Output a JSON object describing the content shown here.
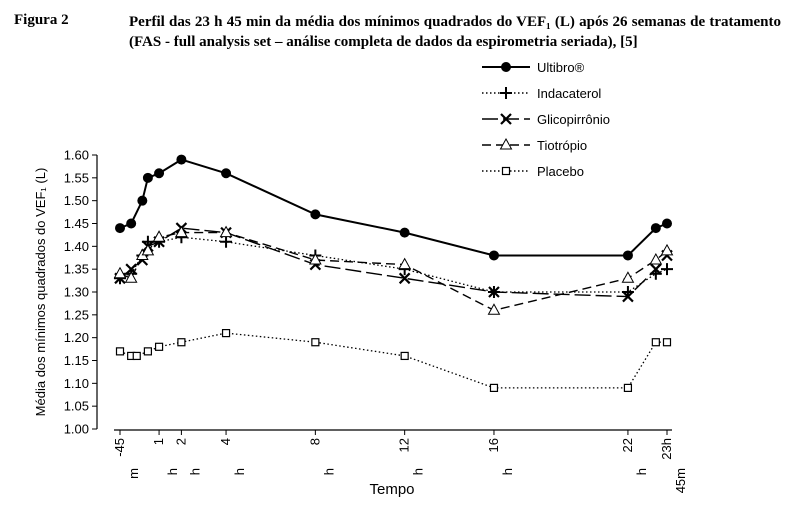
{
  "figure_label": "Figura 2",
  "figure_title": "Perfil das 23 h 45 min da média dos mínimos quadrados do VEF₁ (L) após 26 semanas de tratamento (FAS - full analysis set – análise completa de dados da espirometria seriada), [5]",
  "chart_data": {
    "type": "line",
    "title": "",
    "xlabel": "Tempo",
    "ylabel": "Média dos mínimos quadrados do VEF₁ (L)",
    "ylim": [
      1.0,
      1.6
    ],
    "yticks": [
      "1.00",
      "1.05",
      "1.10",
      "1.15",
      "1.20",
      "1.25",
      "1.30",
      "1.35",
      "1.40",
      "1.45",
      "1.50",
      "1.55",
      "1.60"
    ],
    "x_tick_labels": [
      {
        "x": -0.75,
        "lines": [
          "-45",
          "m"
        ]
      },
      {
        "x": 1,
        "lines": [
          "1",
          "h"
        ]
      },
      {
        "x": 2,
        "lines": [
          "2",
          "h"
        ]
      },
      {
        "x": 4,
        "lines": [
          "4",
          "h"
        ]
      },
      {
        "x": 8,
        "lines": [
          "8",
          "h"
        ]
      },
      {
        "x": 12,
        "lines": [
          "12",
          "h"
        ]
      },
      {
        "x": 16,
        "lines": [
          "16",
          "h"
        ]
      },
      {
        "x": 22,
        "lines": [
          "22",
          "h"
        ]
      },
      {
        "x": 23.75,
        "lines": [
          "23h",
          "45m"
        ]
      }
    ],
    "legend_placement": "top-right",
    "grid": false,
    "series": [
      {
        "name": "Ultibro®",
        "marker": "filled-circle",
        "dash": "solid",
        "x": [
          -0.75,
          -0.25,
          0.25,
          0.5,
          1,
          2,
          4,
          8,
          12,
          16,
          22,
          23.25,
          23.75
        ],
        "values": [
          1.44,
          1.45,
          1.5,
          1.55,
          1.56,
          1.59,
          1.56,
          1.47,
          1.43,
          1.38,
          1.38,
          1.44,
          1.45
        ]
      },
      {
        "name": "Indacaterol",
        "marker": "plus",
        "dash": "dotted",
        "x": [
          -0.75,
          -0.25,
          0.25,
          0.5,
          1,
          2,
          4,
          8,
          12,
          16,
          22,
          23.25,
          23.75
        ],
        "values": [
          1.33,
          1.34,
          1.38,
          1.41,
          1.41,
          1.42,
          1.41,
          1.38,
          1.35,
          1.3,
          1.3,
          1.34,
          1.35
        ]
      },
      {
        "name": "Glicopirrônio",
        "marker": "cross",
        "dash": "longdash",
        "x": [
          -0.75,
          -0.25,
          0.25,
          0.5,
          1,
          2,
          4,
          8,
          12,
          16,
          22,
          23.25,
          23.75
        ],
        "values": [
          1.33,
          1.35,
          1.37,
          1.4,
          1.41,
          1.44,
          1.43,
          1.36,
          1.33,
          1.3,
          1.29,
          1.35,
          1.38
        ]
      },
      {
        "name": "Tiotrópio",
        "marker": "open-triangle",
        "dash": "dashed",
        "x": [
          -0.75,
          -0.25,
          0.25,
          0.5,
          1,
          2,
          4,
          8,
          12,
          16,
          22,
          23.25,
          23.75
        ],
        "values": [
          1.34,
          1.33,
          1.38,
          1.39,
          1.42,
          1.43,
          1.43,
          1.37,
          1.36,
          1.26,
          1.33,
          1.37,
          1.39
        ]
      },
      {
        "name": "Placebo",
        "marker": "open-square",
        "dash": "dotted",
        "x": [
          -0.75,
          -0.25,
          0.0,
          0.5,
          1,
          2,
          4,
          8,
          12,
          16,
          22,
          23.25,
          23.75
        ],
        "values": [
          1.17,
          1.16,
          1.16,
          1.17,
          1.18,
          1.19,
          1.21,
          1.19,
          1.16,
          1.09,
          1.09,
          1.19,
          1.19
        ]
      }
    ]
  }
}
